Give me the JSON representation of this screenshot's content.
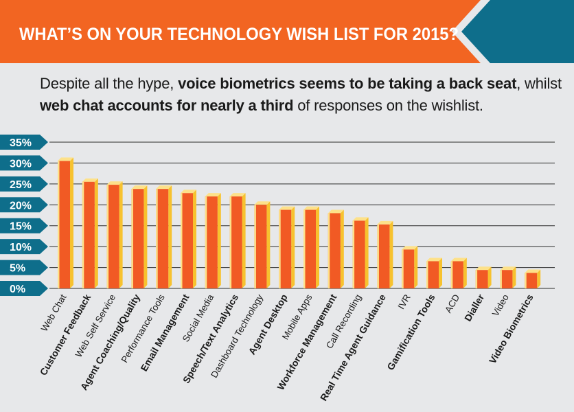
{
  "header": {
    "title": "WHAT’S ON YOUR TECHNOLOGY WISH LIST FOR 2015?"
  },
  "subtitle": {
    "line1_part1": "Despite all the hype, ",
    "line1_bold": "voice biometrics seems to be taking a back seat",
    "line1_part2": ", whilst",
    "line2_bold": "web chat accounts for nearly a third",
    "line2_part2": " of responses on the wishlist."
  },
  "colors": {
    "orange": "#f26522",
    "teal": "#0e6e8b",
    "bar_orange": "#f15a24",
    "bar_highlight": "#fde18a",
    "bar_side": "#f7c22f",
    "background": "#e7e8ea"
  },
  "chart_data": {
    "type": "bar",
    "title": "",
    "xlabel": "",
    "ylabel": "",
    "ylim": [
      0,
      35
    ],
    "y_ticks": [
      "35%",
      "30%",
      "25%",
      "20%",
      "15%",
      "10%",
      "5%",
      "0%"
    ],
    "grid": true,
    "categories": [
      "Web Chat",
      "Customer Feedback",
      "Web Self Service",
      "Agent Coaching/Quality",
      "Performance Tools",
      "Email Management",
      "Social Media",
      "Speech/Text Analytics",
      "Dashboard Technology",
      "Agent Desktop",
      "Mobile Apps",
      "Workforce Management",
      "Call Recording",
      "Real Time Agent Guidance",
      "IVR",
      "Gamification Tools",
      "ACD",
      "Dialler",
      "Video",
      "Video Biometrics"
    ],
    "bold_categories": [
      "Customer Feedback",
      "Agent Coaching/Quality",
      "Email Management",
      "Speech/Text Analytics",
      "Agent Desktop",
      "Workforce Management",
      "Real Time Agent Guidance",
      "Gamification Tools",
      "Dialler",
      "Video Biometrics"
    ],
    "values": [
      30.5,
      25.5,
      24.8,
      23.8,
      23.8,
      22.8,
      22.0,
      22.0,
      20.0,
      18.8,
      18.8,
      18.0,
      16.2,
      15.3,
      9.3,
      6.5,
      6.5,
      4.4,
      4.4,
      3.7
    ]
  }
}
